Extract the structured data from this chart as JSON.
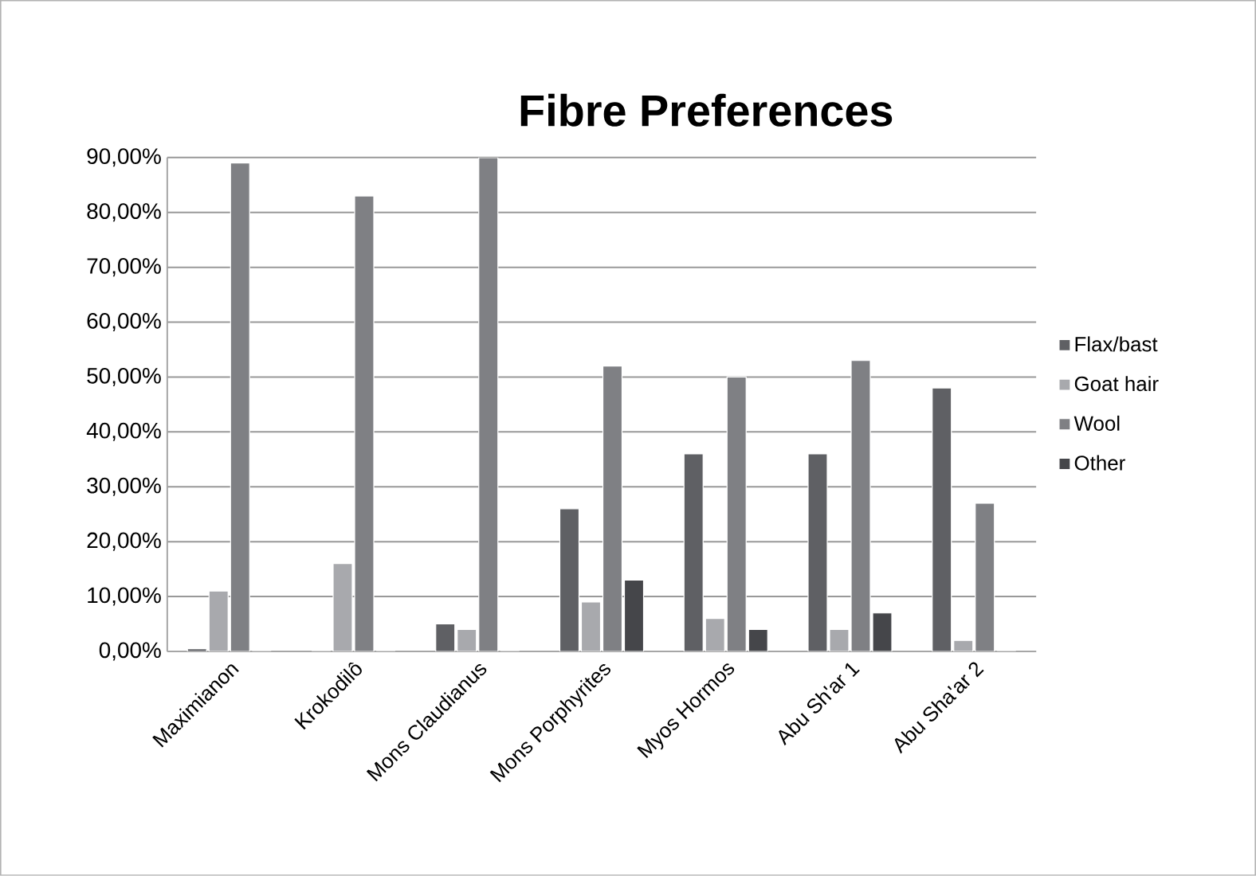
{
  "chart_data": {
    "type": "bar",
    "title": "Fibre Preferences",
    "categories": [
      "Maximianon",
      "Krokodilô",
      "Mons Claudianus",
      "Mons Porphyrites",
      "Myos Hormos",
      "Abu Sh'ar 1",
      "Abu Sha'ar 2"
    ],
    "series": [
      {
        "name": "Flax/bast",
        "color": "#5f6064",
        "values": [
          0.5,
          0,
          5,
          26,
          36,
          36,
          48
        ]
      },
      {
        "name": "Goat hair",
        "color": "#a8a9ad",
        "values": [
          11,
          16,
          4,
          9,
          6,
          4,
          2
        ]
      },
      {
        "name": "Wool",
        "color": "#7f8084",
        "values": [
          89,
          83,
          90,
          52,
          50,
          53,
          27
        ]
      },
      {
        "name": "Other",
        "color": "#45464a",
        "values": [
          0,
          0,
          0,
          13,
          4,
          7,
          0
        ]
      }
    ],
    "ylim": [
      0,
      90
    ],
    "yticks": [
      {
        "value": 0,
        "label": "0,00%"
      },
      {
        "value": 10,
        "label": "10,00%"
      },
      {
        "value": 20,
        "label": "20,00%"
      },
      {
        "value": 30,
        "label": "30,00%"
      },
      {
        "value": 40,
        "label": "40,00%"
      },
      {
        "value": 50,
        "label": "50,00%"
      },
      {
        "value": 60,
        "label": "60,00%"
      },
      {
        "value": 70,
        "label": "70,00%"
      },
      {
        "value": 80,
        "label": "80,00%"
      },
      {
        "value": 90,
        "label": "90,00%"
      }
    ],
    "grid": "y",
    "legend": "right"
  }
}
